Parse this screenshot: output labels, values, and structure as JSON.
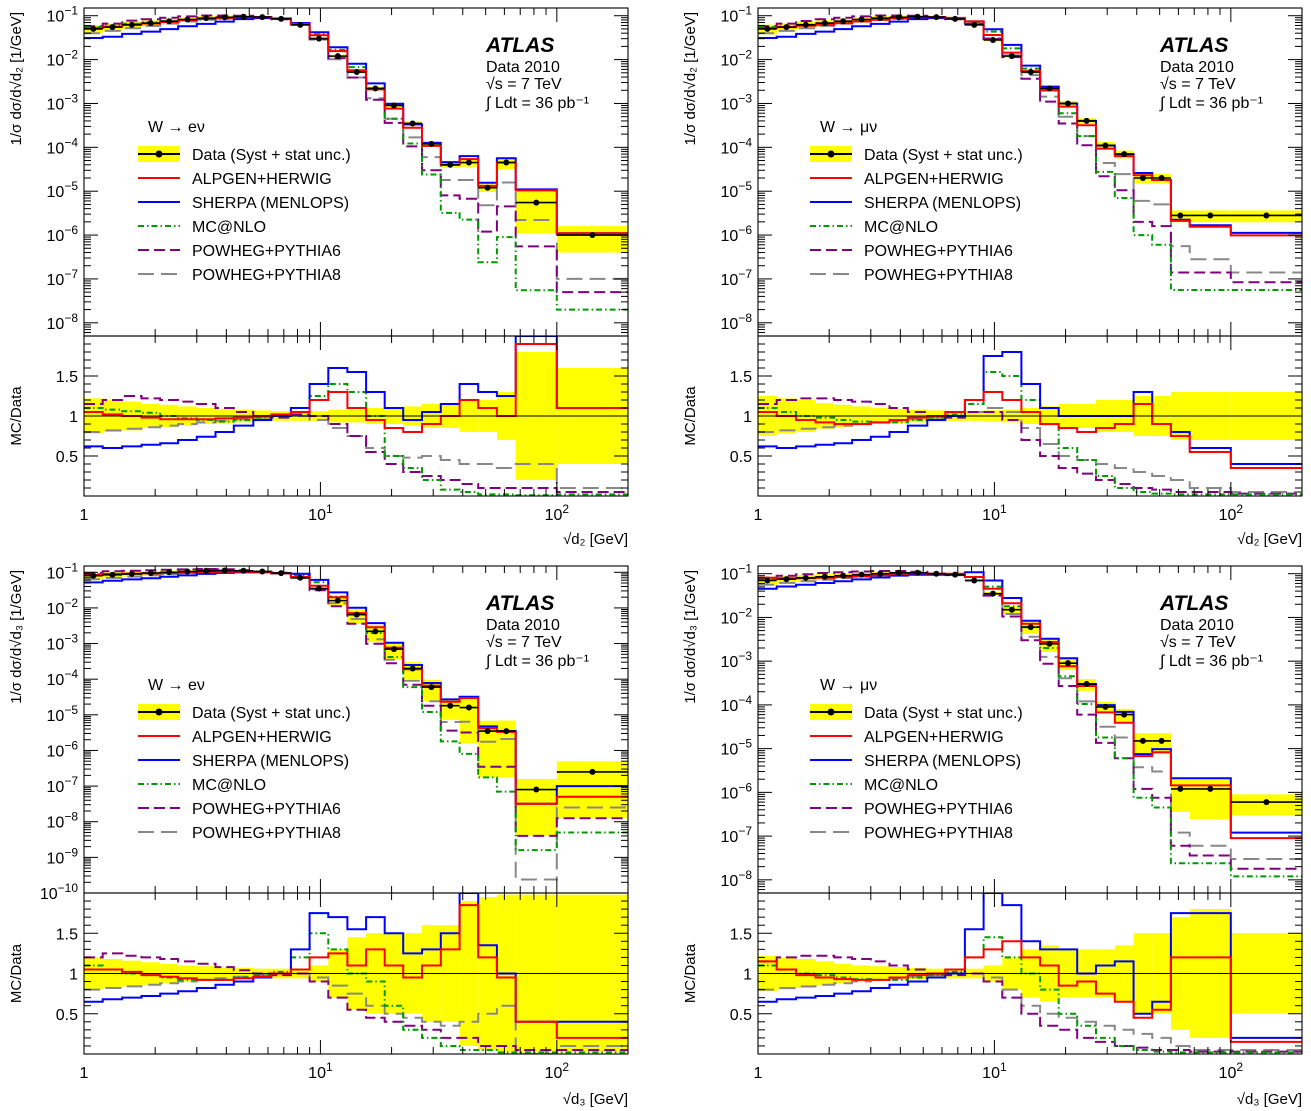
{
  "figure": {
    "atlas_label": "ATLAS",
    "data_label": "Data 2010",
    "energy_label": "√s = 7 TeV",
    "lumi_label": "∫ Ldt = 36 pb⁻¹",
    "ratio_ylabel": "MC/Data"
  },
  "legend": [
    {
      "key": "data",
      "label": "Data (Syst + stat unc.)",
      "color": "#000000",
      "band": "#ffff00",
      "dash": ""
    },
    {
      "key": "alpgen",
      "label": "ALPGEN+HERWIG",
      "color": "#ff0000",
      "dash": ""
    },
    {
      "key": "sherpa",
      "label": "SHERPA (MENLOPS)",
      "color": "#0000ff",
      "dash": ""
    },
    {
      "key": "mcatnlo",
      "label": "MC@NLO",
      "color": "#009900",
      "dash": "6,3,1.5,3"
    },
    {
      "key": "powheg6",
      "label": "POWHEG+PYTHIA6",
      "color": "#800080",
      "dash": "11,5"
    },
    {
      "key": "powheg8",
      "label": "POWHEG+PYTHIA8",
      "color": "#888888",
      "dash": "16,7"
    }
  ],
  "chart_data": [
    {
      "type": "line",
      "panel": "top-left",
      "channel": "W → eν",
      "ylabel": "1/σ dσ/d√d₂ [1/GeV]",
      "xlabel": "√d₂ [GeV]",
      "xscale": "log",
      "yscale": "log",
      "xlim": [
        1,
        200
      ],
      "ylim": [
        5e-09,
        0.15
      ],
      "ratio_ylim": [
        0,
        2
      ],
      "legend_position": "left",
      "bin_edges": [
        1,
        1.2,
        1.45,
        1.75,
        2.1,
        2.5,
        3,
        3.6,
        4.3,
        5.2,
        6.2,
        7.5,
        9,
        10.8,
        13,
        15.6,
        18.7,
        22.4,
        26.9,
        32.3,
        38.8,
        46.5,
        55.8,
        67,
        100,
        200
      ],
      "data": [
        0.05,
        0.055,
        0.062,
        0.068,
        0.075,
        0.082,
        0.088,
        0.092,
        0.095,
        0.093,
        0.085,
        0.062,
        0.03,
        0.012,
        0.0052,
        0.0022,
        0.0009,
        0.00035,
        0.00012,
        4e-05,
        4.5e-05,
        1.2e-05,
        4.5e-05,
        5.5e-06,
        1e-06
      ],
      "band": [
        0.22,
        0.2,
        0.18,
        0.15,
        0.14,
        0.12,
        0.1,
        0.09,
        0.08,
        0.07,
        0.06,
        0.06,
        0.06,
        0.08,
        0.08,
        0.1,
        0.1,
        0.12,
        0.15,
        0.15,
        0.2,
        0.2,
        0.3,
        0.8,
        0.6
      ],
      "ratios": {
        "alpgen": [
          1.05,
          1.02,
          1.0,
          0.98,
          0.96,
          0.96,
          0.96,
          0.97,
          0.98,
          1.0,
          1.02,
          1.05,
          1.2,
          1.3,
          1.1,
          0.95,
          0.85,
          0.8,
          0.9,
          1.0,
          1.2,
          1.1,
          1.0,
          1.9,
          1.1
        ],
        "sherpa": [
          0.62,
          0.6,
          0.62,
          0.64,
          0.66,
          0.7,
          0.74,
          0.8,
          0.88,
          0.95,
          1.0,
          1.1,
          1.4,
          1.6,
          1.55,
          1.3,
          1.1,
          0.95,
          1.05,
          1.15,
          1.4,
          1.3,
          1.25,
          2.0,
          1.1
        ],
        "mcatnlo": [
          1.1,
          1.08,
          1.06,
          1.04,
          1.0,
          0.97,
          0.95,
          0.93,
          0.95,
          0.98,
          1.0,
          1.05,
          1.25,
          1.4,
          1.3,
          1.0,
          0.5,
          0.35,
          0.2,
          0.08,
          0.05,
          0.02,
          0.02,
          0.01,
          0.02
        ],
        "powheg6": [
          1.15,
          1.2,
          1.25,
          1.22,
          1.2,
          1.18,
          1.15,
          1.1,
          1.05,
          1.0,
          0.98,
          1.02,
          1.0,
          0.9,
          0.75,
          0.55,
          0.4,
          0.3,
          0.25,
          0.2,
          0.15,
          0.1,
          0.1,
          0.1,
          0.05
        ],
        "powheg8": [
          0.8,
          0.82,
          0.84,
          0.86,
          0.88,
          0.9,
          0.92,
          0.94,
          0.96,
          0.98,
          1.0,
          1.0,
          0.95,
          0.85,
          0.75,
          0.6,
          0.5,
          0.48,
          0.5,
          0.45,
          0.4,
          0.4,
          0.35,
          0.4,
          0.1
        ]
      }
    },
    {
      "type": "line",
      "panel": "top-right",
      "channel": "W → μν",
      "ylabel": "1/σ dσ/d√d₂ [1/GeV]",
      "xlabel": "√d₂ [GeV]",
      "xscale": "log",
      "yscale": "log",
      "xlim": [
        1,
        200
      ],
      "ylim": [
        5e-09,
        0.15
      ],
      "ratio_ylim": [
        0,
        2
      ],
      "legend_position": "right",
      "bin_edges": [
        1,
        1.2,
        1.45,
        1.75,
        2.1,
        2.5,
        3,
        3.6,
        4.3,
        5.2,
        6.2,
        7.5,
        9,
        10.8,
        13,
        15.6,
        18.7,
        22.4,
        26.9,
        32.3,
        38.8,
        46.5,
        55.8,
        67,
        100,
        200
      ],
      "data": [
        0.05,
        0.055,
        0.062,
        0.068,
        0.075,
        0.082,
        0.088,
        0.092,
        0.095,
        0.093,
        0.085,
        0.062,
        0.028,
        0.012,
        0.0052,
        0.0022,
        0.001,
        0.0004,
        0.00011,
        7e-05,
        2e-05,
        2e-05,
        2.8e-06,
        2.8e-06,
        2.8e-06
      ],
      "band": [
        0.25,
        0.22,
        0.2,
        0.16,
        0.14,
        0.12,
        0.1,
        0.09,
        0.08,
        0.07,
        0.06,
        0.06,
        0.07,
        0.08,
        0.1,
        0.12,
        0.15,
        0.15,
        0.2,
        0.2,
        0.25,
        0.25,
        0.3,
        0.3,
        0.3
      ],
      "ratios": {
        "alpgen": [
          1.05,
          1.0,
          0.95,
          0.92,
          0.9,
          0.9,
          0.92,
          0.95,
          0.98,
          1.0,
          1.05,
          1.2,
          1.3,
          1.2,
          1.05,
          0.9,
          0.85,
          0.8,
          0.85,
          0.9,
          1.15,
          0.9,
          0.75,
          0.55,
          0.35
        ],
        "sherpa": [
          0.62,
          0.6,
          0.62,
          0.64,
          0.66,
          0.7,
          0.74,
          0.8,
          0.88,
          0.95,
          1.0,
          1.2,
          1.75,
          1.8,
          1.4,
          1.1,
          1.0,
          1.0,
          1.0,
          1.0,
          1.3,
          0.9,
          0.8,
          0.6,
          0.4
        ],
        "mcatnlo": [
          1.1,
          1.05,
          1.0,
          0.98,
          0.95,
          0.93,
          0.92,
          0.92,
          0.95,
          0.98,
          1.02,
          1.15,
          1.55,
          1.5,
          1.2,
          0.9,
          0.6,
          0.45,
          0.25,
          0.1,
          0.05,
          0.03,
          0.02,
          0.02,
          0.02
        ],
        "powheg6": [
          1.15,
          1.2,
          1.22,
          1.22,
          1.2,
          1.18,
          1.15,
          1.1,
          1.05,
          1.0,
          0.98,
          1.05,
          1.05,
          0.95,
          0.7,
          0.5,
          0.35,
          0.28,
          0.2,
          0.15,
          0.1,
          0.08,
          0.05,
          0.05,
          0.03
        ],
        "powheg8": [
          0.8,
          0.82,
          0.84,
          0.86,
          0.88,
          0.9,
          0.92,
          0.94,
          0.96,
          0.98,
          1.0,
          1.05,
          1.1,
          1.05,
          0.85,
          0.65,
          0.5,
          0.45,
          0.4,
          0.35,
          0.3,
          0.25,
          0.2,
          0.1,
          0.05
        ]
      }
    },
    {
      "type": "line",
      "panel": "bottom-left",
      "channel": "W → eν",
      "ylabel": "1/σ dσ/d√d₃ [1/GeV]",
      "xlabel": "√d₃ [GeV]",
      "xscale": "log",
      "yscale": "log",
      "xlim": [
        1,
        200
      ],
      "ylim": [
        1e-10,
        0.15
      ],
      "ratio_ylim": [
        0,
        2
      ],
      "legend_position": "left",
      "bin_edges": [
        1,
        1.2,
        1.45,
        1.75,
        2.1,
        2.5,
        3,
        3.6,
        4.3,
        5.2,
        6.2,
        7.5,
        9,
        10.8,
        13,
        15.6,
        18.7,
        22.4,
        26.9,
        32.3,
        38.8,
        46.5,
        55.8,
        67,
        100,
        200
      ],
      "data": [
        0.08,
        0.085,
        0.09,
        0.095,
        0.1,
        0.105,
        0.11,
        0.112,
        0.11,
        0.105,
        0.095,
        0.07,
        0.035,
        0.016,
        0.0065,
        0.0022,
        0.0007,
        0.0002,
        6e-05,
        1.8e-05,
        1.6e-05,
        3.5e-06,
        3.5e-06,
        8e-08,
        2.5e-07
      ],
      "band": [
        0.2,
        0.18,
        0.16,
        0.14,
        0.12,
        0.1,
        0.09,
        0.08,
        0.07,
        0.06,
        0.06,
        0.06,
        0.1,
        0.3,
        0.45,
        0.5,
        0.5,
        0.5,
        0.6,
        0.6,
        0.9,
        0.95,
        0.98,
        0.98,
        0.98
      ],
      "ratios": {
        "alpgen": [
          1.05,
          1.05,
          1.02,
          0.98,
          0.96,
          0.94,
          0.92,
          0.92,
          0.94,
          0.96,
          1.0,
          1.05,
          1.2,
          1.25,
          1.1,
          1.3,
          1.1,
          0.95,
          1.1,
          1.3,
          1.85,
          1.2,
          0.95,
          0.4,
          0.2
        ],
        "sherpa": [
          0.65,
          0.68,
          0.7,
          0.72,
          0.75,
          0.78,
          0.82,
          0.86,
          0.9,
          0.95,
          1.0,
          1.3,
          1.75,
          1.7,
          1.55,
          1.7,
          1.5,
          1.25,
          1.3,
          1.5,
          2.0,
          1.35,
          1.0,
          0.4,
          0.4
        ],
        "mcatnlo": [
          1.1,
          1.05,
          1.0,
          0.98,
          0.95,
          0.92,
          0.92,
          0.92,
          0.95,
          0.98,
          1.02,
          1.2,
          1.5,
          1.3,
          1.0,
          0.9,
          0.6,
          0.3,
          0.2,
          0.1,
          0.05,
          0.05,
          0.02,
          0.02,
          0.02
        ],
        "powheg6": [
          1.2,
          1.25,
          1.22,
          1.2,
          1.18,
          1.15,
          1.12,
          1.08,
          1.04,
          1.0,
          0.98,
          1.0,
          0.9,
          0.7,
          0.55,
          0.45,
          0.4,
          0.35,
          0.3,
          0.2,
          0.2,
          0.1,
          0.1,
          0.05,
          0.05
        ],
        "powheg8": [
          0.8,
          0.82,
          0.84,
          0.86,
          0.88,
          0.9,
          0.92,
          0.94,
          0.96,
          0.98,
          1.0,
          1.0,
          0.95,
          0.85,
          0.75,
          0.6,
          0.5,
          0.45,
          0.4,
          0.35,
          0.4,
          0.5,
          0.6,
          0.0,
          0.1
        ]
      }
    },
    {
      "type": "line",
      "panel": "bottom-right",
      "channel": "W → μν",
      "ylabel": "1/σ dσ/d√d₃ [1/GeV]",
      "xlabel": "√d₃ [GeV]",
      "xscale": "log",
      "yscale": "log",
      "xlim": [
        1,
        200
      ],
      "ylim": [
        5e-09,
        0.15
      ],
      "ratio_ylim": [
        0,
        2
      ],
      "legend_position": "right",
      "bin_edges": [
        1,
        1.2,
        1.45,
        1.75,
        2.1,
        2.5,
        3,
        3.6,
        4.3,
        5.2,
        6.2,
        7.5,
        9,
        10.8,
        13,
        15.6,
        18.7,
        22.4,
        26.9,
        32.3,
        38.8,
        46.5,
        55.8,
        67,
        100,
        200
      ],
      "data": [
        0.07,
        0.075,
        0.08,
        0.085,
        0.09,
        0.095,
        0.1,
        0.105,
        0.105,
        0.1,
        0.095,
        0.07,
        0.035,
        0.015,
        0.006,
        0.0025,
        0.0009,
        0.0003,
        9e-05,
        6e-05,
        1.5e-05,
        1.5e-05,
        1.2e-06,
        1.2e-06,
        6e-07
      ],
      "band": [
        0.22,
        0.2,
        0.18,
        0.15,
        0.12,
        0.1,
        0.09,
        0.08,
        0.07,
        0.06,
        0.06,
        0.06,
        0.1,
        0.2,
        0.3,
        0.35,
        0.3,
        0.3,
        0.3,
        0.35,
        0.5,
        0.5,
        0.7,
        0.8,
        0.5
      ],
      "ratios": {
        "alpgen": [
          1.15,
          1.05,
          0.98,
          0.95,
          0.93,
          0.92,
          0.92,
          0.95,
          0.98,
          1.0,
          1.05,
          1.2,
          1.3,
          1.4,
          1.2,
          1.1,
          0.85,
          0.9,
          0.75,
          0.65,
          0.45,
          0.55,
          1.2,
          1.2,
          0.15
        ],
        "sherpa": [
          0.65,
          0.68,
          0.7,
          0.72,
          0.75,
          0.78,
          0.82,
          0.86,
          0.9,
          0.95,
          1.0,
          1.55,
          2.0,
          1.85,
          1.4,
          1.3,
          1.3,
          1.0,
          1.1,
          1.15,
          0.5,
          0.65,
          1.75,
          1.75,
          0.2
        ],
        "mcatnlo": [
          1.1,
          1.05,
          1.0,
          0.98,
          0.95,
          0.93,
          0.92,
          0.92,
          0.95,
          0.98,
          1.02,
          1.2,
          1.45,
          1.2,
          1.0,
          0.8,
          0.5,
          0.35,
          0.2,
          0.1,
          0.05,
          0.03,
          0.02,
          0.02,
          0.02
        ],
        "powheg6": [
          1.15,
          1.2,
          1.22,
          1.22,
          1.2,
          1.18,
          1.15,
          1.1,
          1.05,
          1.0,
          0.98,
          1.0,
          0.9,
          0.7,
          0.5,
          0.35,
          0.3,
          0.2,
          0.15,
          0.1,
          0.08,
          0.05,
          0.05,
          0.03,
          0.03
        ],
        "powheg8": [
          0.8,
          0.82,
          0.84,
          0.86,
          0.88,
          0.9,
          0.92,
          0.94,
          0.96,
          0.98,
          1.0,
          1.0,
          0.95,
          0.8,
          0.6,
          0.5,
          0.45,
          0.4,
          0.35,
          0.3,
          0.25,
          0.2,
          0.1,
          0.05,
          0.05
        ]
      }
    }
  ]
}
